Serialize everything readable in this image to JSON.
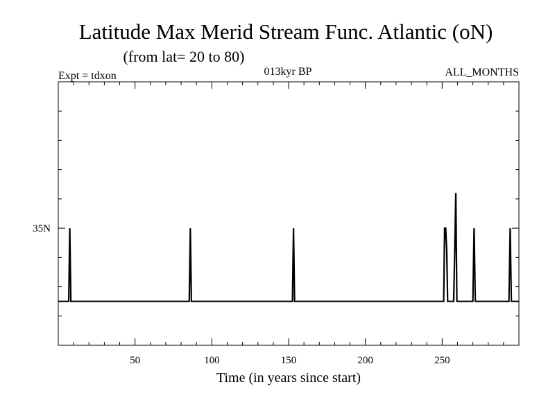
{
  "chart_data": {
    "type": "line",
    "title": "Latitude Max Merid Stream Func. Atlantic (oN)",
    "subtitle": "(from lat= 20 to 80)",
    "left_note": "Expt = tdxon",
    "center_note": "013kyr BP",
    "right_note": "ALL_MONTHS",
    "xlabel": "Time (in years since start)",
    "ylabel": "",
    "xlim": [
      0,
      300
    ],
    "ylim": [
      15,
      60
    ],
    "x_ticks": [
      50,
      100,
      150,
      200,
      250
    ],
    "x_tick_labels": [
      "50",
      "100",
      "150",
      "200",
      "250"
    ],
    "y_ticks": [
      35
    ],
    "y_tick_labels": [
      "35N"
    ],
    "grid": false,
    "legend": "none",
    "series": [
      {
        "x": [
          0,
          6.8,
          7.5,
          8.2,
          85.3,
          86.0,
          86.7,
          152.5,
          153.2,
          153.9,
          251.0,
          251.6,
          252.3,
          253.0,
          253.6,
          257.5,
          258.2,
          258.9,
          259.6,
          270.0,
          270.8,
          271.6,
          293.5,
          294.3,
          295.1,
          300
        ],
        "y": [
          22.5,
          22.5,
          35,
          22.5,
          22.5,
          35,
          22.5,
          22.5,
          35,
          22.5,
          22.5,
          35,
          35,
          31,
          22.5,
          22.5,
          31,
          41,
          22.5,
          22.5,
          35,
          22.5,
          22.5,
          35,
          22.5,
          22.5
        ]
      }
    ]
  },
  "style": {
    "line_color": "#000000",
    "background": "#ffffff"
  }
}
